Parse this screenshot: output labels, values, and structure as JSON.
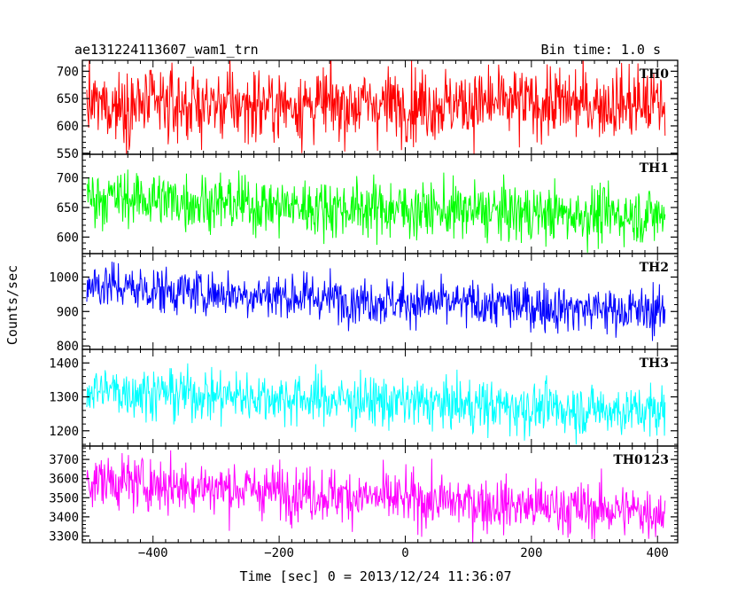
{
  "header": {
    "left_title": "ae131224113607_wam1_trn",
    "right_title": "Bin time: 1.0 s"
  },
  "chart_data": {
    "type": "line",
    "title": "ae131224113607_wam1_trn",
    "subtitle": "Bin time: 1.0 s",
    "xlabel": "Time [sec] 0 = 2013/12/24 11:36:07",
    "ylabel": "Counts/sec",
    "xlim": [
      -512,
      432
    ],
    "x_ticks": [
      -400,
      -200,
      0,
      200,
      400
    ],
    "x_tick_labels": [
      "−400",
      "−200",
      "0",
      "200",
      "400"
    ],
    "x_range": [
      -505,
      412
    ],
    "bin_time": 1.0,
    "grid": false,
    "panels": [
      {
        "name": "TH0",
        "label": "TH0",
        "color": "#ff0000",
        "ylim": [
          548,
          720
        ],
        "y_ticks": [
          550,
          600,
          650,
          700
        ],
        "trend": [
          [
            -505,
            638
          ],
          [
            -300,
            638
          ],
          [
            0,
            640
          ],
          [
            412,
            641
          ]
        ],
        "noise_sigma": 33,
        "spread": [
          [
            -505,
            75
          ],
          [
            412,
            75
          ]
        ]
      },
      {
        "name": "TH1",
        "label": "TH1",
        "color": "#00ff00",
        "ylim": [
          572,
          740
        ],
        "y_ticks": [
          600,
          650,
          700
        ],
        "trend": [
          [
            -505,
            668
          ],
          [
            -400,
            664
          ],
          [
            -200,
            652
          ],
          [
            0,
            647
          ],
          [
            200,
            640
          ],
          [
            412,
            636
          ]
        ],
        "noise_sigma": 24,
        "spread": [
          [
            -505,
            60
          ],
          [
            412,
            60
          ]
        ]
      },
      {
        "name": "TH2",
        "label": "TH2",
        "color": "#0000ff",
        "ylim": [
          790,
          1068
        ],
        "y_ticks": [
          800,
          900,
          1000
        ],
        "trend": [
          [
            -505,
            982
          ],
          [
            -400,
            962
          ],
          [
            -200,
            946
          ],
          [
            0,
            927
          ],
          [
            200,
            915
          ],
          [
            412,
            898
          ]
        ],
        "noise_sigma": 34,
        "spread": [
          [
            -505,
            80
          ],
          [
            412,
            80
          ]
        ]
      },
      {
        "name": "TH3",
        "label": "TH3",
        "color": "#00ffff",
        "ylim": [
          1155,
          1440
        ],
        "y_ticks": [
          1200,
          1300,
          1400
        ],
        "trend": [
          [
            -505,
            1322
          ],
          [
            -400,
            1312
          ],
          [
            -200,
            1298
          ],
          [
            0,
            1283
          ],
          [
            200,
            1268
          ],
          [
            412,
            1257
          ]
        ],
        "noise_sigma": 38,
        "spread": [
          [
            -505,
            90
          ],
          [
            412,
            90
          ]
        ]
      },
      {
        "name": "TH0123",
        "label": "TH0123",
        "color": "#ff00ff",
        "ylim": [
          3265,
          3770
        ],
        "y_ticks": [
          3300,
          3400,
          3500,
          3600,
          3700
        ],
        "trend": [
          [
            -505,
            3595
          ],
          [
            -400,
            3570
          ],
          [
            -200,
            3535
          ],
          [
            0,
            3490
          ],
          [
            200,
            3455
          ],
          [
            412,
            3425
          ]
        ],
        "noise_sigma": 70,
        "spread": [
          [
            -505,
            150
          ],
          [
            412,
            150
          ]
        ]
      }
    ]
  }
}
